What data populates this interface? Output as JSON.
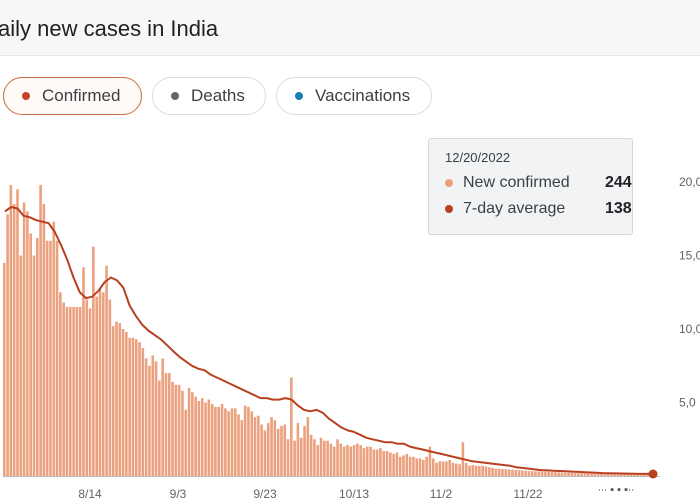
{
  "header": {
    "title": "aily new cases in India"
  },
  "tabs": [
    {
      "label": "Confirmed",
      "color": "#c0432a",
      "selected": true
    },
    {
      "label": "Deaths",
      "color": "#666666",
      "selected": false
    },
    {
      "label": "Vaccinations",
      "color": "#1a7eb0",
      "selected": false
    }
  ],
  "tooltip": {
    "date": "12/20/2022",
    "rows": [
      {
        "label": "New confirmed",
        "value": "244",
        "color": "#eba07e"
      },
      {
        "label": "7-day average",
        "value": "138",
        "color": "#b8401f"
      }
    ]
  },
  "chart_data": {
    "type": "bar",
    "bar_color": "#eba07e",
    "line_color": "#b8401f",
    "x_ticks": [
      "8/14",
      "9/3",
      "9/23",
      "10/13",
      "11/2",
      "11/22"
    ],
    "y_ticks": [
      "20,0",
      "15,0",
      "10,0",
      "5,0"
    ],
    "ylim": [
      0,
      20000
    ],
    "daily_values": [
      14500,
      17800,
      19800,
      18500,
      19500,
      15000,
      18600,
      18000,
      16500,
      15000,
      16200,
      19800,
      18500,
      16000,
      16000,
      17300,
      16000,
      12500,
      11800,
      11500,
      11500,
      11500,
      11500,
      11500,
      14200,
      12000,
      11400,
      15600,
      12200,
      12800,
      12500,
      14300,
      12000,
      10200,
      10500,
      10400,
      10000,
      9800,
      9400,
      9400,
      9300,
      9100,
      8700,
      8000,
      7500,
      8200,
      7800,
      6500,
      8000,
      7000,
      7000,
      6400,
      6200,
      6200,
      5800,
      4500,
      6000,
      5700,
      5400,
      5100,
      5300,
      5000,
      5200,
      4900,
      4700,
      4700,
      4900,
      4600,
      4400,
      4600,
      4600,
      4200,
      3800,
      4800,
      4700,
      4400,
      4000,
      4100,
      3500,
      3100,
      3600,
      4000,
      3800,
      3200,
      3400,
      3500,
      2500,
      6700,
      2400,
      3600,
      2600,
      3400,
      4000,
      2800,
      2500,
      2100,
      2600,
      2400,
      2400,
      2200,
      2000,
      2500,
      2200,
      2000,
      2100,
      2000,
      2100,
      2200,
      2100,
      1900,
      2000,
      2000,
      1800,
      1800,
      1900,
      1700,
      1700,
      1600,
      1500,
      1600,
      1300,
      1400,
      1500,
      1300,
      1300,
      1200,
      1200,
      1100,
      1300,
      2000,
      1200,
      900,
      1000,
      1000,
      1000,
      1100,
      900,
      850,
      800,
      2300,
      900,
      700,
      750,
      700,
      680,
      700,
      650,
      600,
      550,
      500,
      500,
      480,
      460,
      450,
      430,
      420,
      400,
      380,
      360,
      340,
      330,
      320,
      310,
      300,
      290,
      280,
      270,
      260,
      250,
      240,
      230,
      220,
      210,
      200,
      190,
      190,
      180,
      170,
      160,
      160,
      150,
      150,
      140,
      140,
      130,
      130,
      120,
      120,
      110,
      110,
      100,
      100,
      95,
      90,
      85,
      80,
      80
    ],
    "avg_values": [
      18000,
      18300,
      18200,
      17700,
      17600,
      17400,
      17300,
      17200,
      16600,
      15700,
      14700,
      13500,
      12500,
      12100,
      12200,
      12600,
      13200,
      13500,
      13300,
      12800,
      11600,
      10900,
      10300,
      9900,
      9600,
      9300,
      8900,
      8500,
      8100,
      7800,
      7500,
      7300,
      7200,
      6900,
      6700,
      6500,
      6300,
      6100,
      5900,
      5700,
      5500,
      5300,
      5300,
      5200,
      5200,
      5300,
      5200,
      4800,
      4500,
      4400,
      4500,
      4300,
      3900,
      3600,
      3300,
      3100,
      3000,
      2800,
      2600,
      2500,
      2400,
      2300,
      2300,
      2200,
      2200,
      2000,
      1900,
      1800,
      1700,
      1600,
      1500,
      1400,
      1300,
      1200,
      1100,
      1000,
      950,
      900,
      850,
      800,
      750,
      700,
      600,
      550,
      500,
      450,
      400,
      380,
      360,
      340,
      320,
      300,
      280,
      260,
      240,
      220,
      200,
      190,
      180,
      170,
      160,
      150,
      145,
      140,
      138
    ]
  }
}
